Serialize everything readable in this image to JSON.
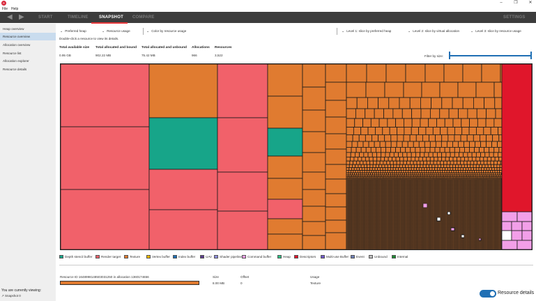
{
  "app": {
    "icon_letter": "R",
    "brand_color": "#d9273a"
  },
  "window_controls": {
    "minimize": "–",
    "maximize": "❐",
    "close": "✕"
  },
  "menu": [
    "File",
    "Help"
  ],
  "nav": {
    "back": "◀",
    "forward": "▶",
    "tabs": [
      "START",
      "TIMELINE",
      "SNAPSHOT",
      "COMPARE"
    ],
    "active_tab": "SNAPSHOT",
    "settings": "SETTINGS"
  },
  "sidebar": {
    "items": [
      "Heap overview",
      "Resource overview",
      "Allocation overview",
      "Resource list",
      "Allocation explorer",
      "Resource details"
    ],
    "active": "Resource overview"
  },
  "status": {
    "viewing_label": "You are currently viewing:",
    "snapshot": "Snapshot 0",
    "snapshot_icon": "↗"
  },
  "options": {
    "preferred_heap": "Preferred heap",
    "resource_usage": "Resource usage",
    "color_by": "Color by resource usage",
    "level1": "Level 1: slice by preferred heap",
    "level2": "Level 2: slice by virtual allocation",
    "level3": "Level 3: slice by resource usage",
    "hint": "Double-click a resource to view its details."
  },
  "stats": {
    "headers": [
      "Total available size",
      "Total allocated and bound",
      "Total allocated and unbound",
      "Allocations",
      "Resources"
    ],
    "values": [
      "0.95 GB",
      "902.22 MB",
      "75.42 MB",
      "966",
      "3,522"
    ]
  },
  "filter": {
    "label": "Filter by size:",
    "min_fraction": 0.0,
    "max_fraction": 1.0
  },
  "legend": [
    {
      "label": "Depth stencil buffer",
      "color": "#17a589"
    },
    {
      "label": "Render target",
      "color": "#f1616a"
    },
    {
      "label": "Texture",
      "color": "#e07b30"
    },
    {
      "label": "Vertex buffer",
      "color": "#f5b800"
    },
    {
      "label": "Index buffer",
      "color": "#1f6fb4"
    },
    {
      "label": "UAV",
      "color": "#5d3d8e"
    },
    {
      "label": "Shader pipeline",
      "color": "#8e8edb"
    },
    {
      "label": "Command buffer",
      "color": "#f29fe8"
    },
    {
      "label": "Heap",
      "color": "#2dbf84"
    },
    {
      "label": "Descriptors",
      "color": "#e0162b"
    },
    {
      "label": "Multi-use Buffer",
      "color": "#7058c9"
    },
    {
      "label": "Event",
      "color": "#6f7fb6"
    },
    {
      "label": "Unbound",
      "color": "#bdbdbd"
    },
    {
      "label": "Internal",
      "color": "#1e8a31"
    }
  ],
  "details": {
    "resource": "Resource ID 1648998148503031250 in allocation 1360174656",
    "size_label": "Size",
    "size_value": "8.00 MB",
    "offset_label": "Offset",
    "offset_value": "0",
    "usage_label": "Usage",
    "usage_value": "Texture",
    "bar_color": "#e07b30"
  },
  "resource_details_toggle": {
    "label": "Resource details",
    "on": true
  },
  "colors": {
    "texture": "#e07b30",
    "render_target": "#f1616a",
    "depth": "#17a589",
    "descriptors": "#e0162b",
    "command": "#f29fe8"
  }
}
